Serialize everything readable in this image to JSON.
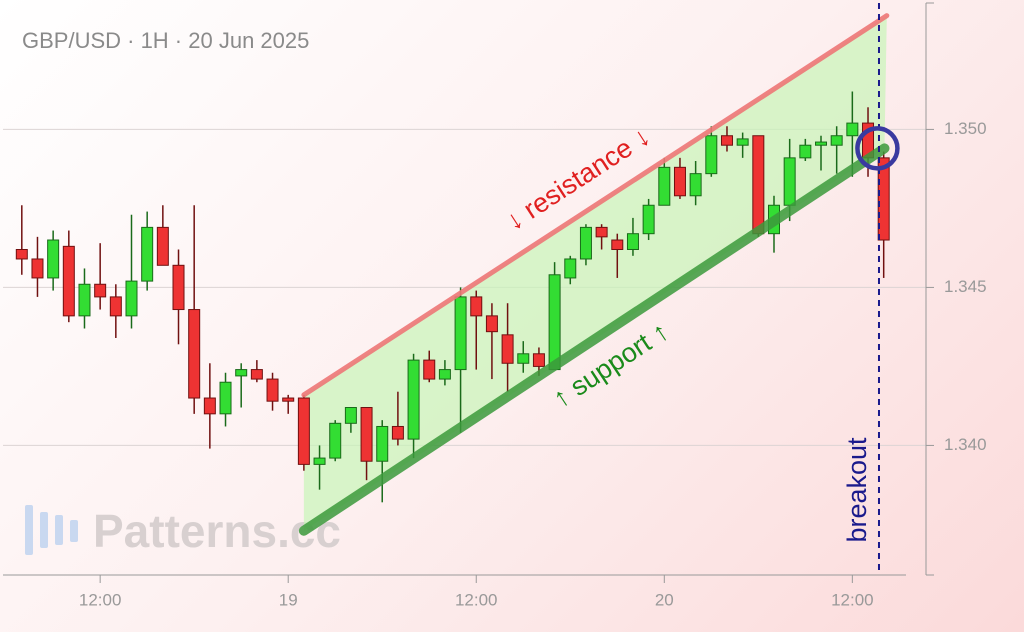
{
  "chart_data": {
    "type": "candlestick",
    "title": "GBP/USD · 1H · 20 Jun 2025",
    "watermark": "Patterns.cc",
    "x": [
      7,
      8,
      9,
      10,
      11,
      12,
      13,
      14,
      15,
      16,
      17,
      18,
      19,
      20,
      21,
      22,
      23,
      24,
      25,
      26,
      27,
      28,
      29,
      30,
      31,
      32,
      33,
      34,
      35,
      36,
      37,
      38,
      39,
      40,
      41,
      42,
      43,
      44,
      45,
      46,
      47,
      48,
      49,
      50,
      51,
      52,
      53,
      54,
      55,
      56,
      57,
      58,
      59,
      60,
      61,
      62
    ],
    "open": [
      1.3462,
      1.3459,
      1.3453,
      1.3463,
      1.3441,
      1.3451,
      1.3447,
      1.3441,
      1.3452,
      1.3469,
      1.3457,
      1.3443,
      1.3415,
      1.341,
      1.3422,
      1.3424,
      1.3421,
      1.3415,
      1.3415,
      1.3394,
      1.3396,
      1.3407,
      1.3412,
      1.3395,
      1.3406,
      1.3402,
      1.3427,
      1.3421,
      1.3424,
      1.3447,
      1.3441,
      1.3435,
      1.3426,
      1.3429,
      1.3424,
      1.3453,
      1.3459,
      1.3469,
      1.3465,
      1.3462,
      1.3467,
      1.3476,
      1.3488,
      1.3479,
      1.3486,
      1.3498,
      1.3495,
      1.3498,
      1.3467,
      1.3476,
      1.3491,
      1.3495,
      1.3495,
      1.3498,
      1.3502,
      1.3491
    ],
    "high": [
      1.3476,
      1.3466,
      1.3468,
      1.3468,
      1.3456,
      1.3464,
      1.3451,
      1.3473,
      1.3474,
      1.3476,
      1.3462,
      1.3476,
      1.3426,
      1.3423,
      1.3426,
      1.3427,
      1.3423,
      1.3416,
      1.3416,
      1.34,
      1.3408,
      1.3412,
      1.3412,
      1.3408,
      1.3417,
      1.3429,
      1.343,
      1.3427,
      1.345,
      1.3449,
      1.3445,
      1.3445,
      1.3433,
      1.3431,
      1.3458,
      1.346,
      1.347,
      1.347,
      1.3467,
      1.3472,
      1.3478,
      1.3491,
      1.3491,
      1.349,
      1.3501,
      1.3501,
      1.3499,
      1.3498,
      1.3479,
      1.3497,
      1.3497,
      1.3498,
      1.3501,
      1.3512,
      1.3507,
      1.3493
    ],
    "low": [
      1.3454,
      1.3447,
      1.3449,
      1.3439,
      1.3437,
      1.3443,
      1.3434,
      1.3437,
      1.3449,
      1.3457,
      1.3432,
      1.341,
      1.3399,
      1.3406,
      1.3412,
      1.342,
      1.3411,
      1.341,
      1.3392,
      1.3386,
      1.3395,
      1.3404,
      1.3389,
      1.3382,
      1.34,
      1.3396,
      1.342,
      1.3419,
      1.3404,
      1.3424,
      1.3421,
      1.3417,
      1.3423,
      1.3422,
      1.3424,
      1.3451,
      1.3457,
      1.3462,
      1.3453,
      1.346,
      1.3465,
      1.3476,
      1.3478,
      1.3476,
      1.3485,
      1.3493,
      1.3491,
      1.3466,
      1.3461,
      1.3471,
      1.349,
      1.3487,
      1.3486,
      1.3485,
      1.3485,
      1.3453
    ],
    "close": [
      1.3459,
      1.3453,
      1.3465,
      1.3441,
      1.3451,
      1.3447,
      1.3441,
      1.3452,
      1.3469,
      1.3457,
      1.3443,
      1.3415,
      1.341,
      1.342,
      1.3424,
      1.3421,
      1.3414,
      1.3414,
      1.3394,
      1.3396,
      1.3407,
      1.3412,
      1.3395,
      1.3406,
      1.3402,
      1.3427,
      1.3421,
      1.3424,
      1.3447,
      1.3441,
      1.3436,
      1.3426,
      1.3429,
      1.3425,
      1.3454,
      1.3459,
      1.3469,
      1.3466,
      1.3462,
      1.3467,
      1.3476,
      1.3488,
      1.3479,
      1.3486,
      1.3498,
      1.3495,
      1.3497,
      1.3467,
      1.3476,
      1.3491,
      1.3495,
      1.3496,
      1.3498,
      1.3502,
      1.3491,
      1.3465
    ],
    "up_color": "#33dd33",
    "down_color": "#ee3333",
    "xlim": [
      5.8,
      64.7
    ],
    "ylim": [
      1.3359,
      1.354
    ],
    "xticks": [
      {
        "value": 12,
        "label": "12:00"
      },
      {
        "value": 24,
        "label": "19"
      },
      {
        "value": 36,
        "label": "12:00"
      },
      {
        "value": 48,
        "label": "20"
      },
      {
        "value": 60,
        "label": "12:00"
      }
    ],
    "yticks": [
      {
        "value": 1.34,
        "label": "1.340"
      },
      {
        "value": 1.345,
        "label": "1.345"
      },
      {
        "value": 1.35,
        "label": "1.350"
      }
    ],
    "grid": true,
    "annotations": {
      "resistance": {
        "label": "↓ resistance ↓",
        "x": [
          25,
          62.2
        ],
        "y": [
          1.3416,
          1.3536
        ],
        "color": "#ee7777"
      },
      "support": {
        "label": "↑ support ↑",
        "x": [
          25,
          62.05
        ],
        "y": [
          1.3373,
          1.3494
        ],
        "color": "#3c9a3c"
      },
      "breakout": {
        "label": "breakout",
        "x": 61.7,
        "color": "#1a1a8c"
      },
      "breakout_point": {
        "x": 61.6,
        "y": 1.3494,
        "color": "#3a3aa0"
      }
    }
  }
}
